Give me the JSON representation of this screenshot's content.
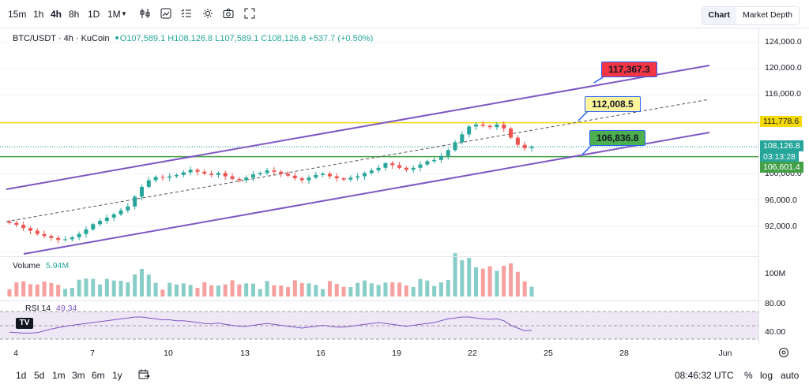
{
  "toolbar": {
    "timeframes": [
      "15m",
      "1h",
      "4h",
      "8h",
      "1D",
      "1M"
    ],
    "tabs": [
      "Chart",
      "Market Depth"
    ]
  },
  "legend": {
    "symbol": "BTC/USDT · 4h · KuCoin",
    "open": "O107,589.1",
    "high": "H108,126.8",
    "low": "L107,589.1",
    "close": "C108,126.8",
    "change": "+537.7 (+0.50%)"
  },
  "volume": {
    "label": "Volume",
    "value": "5.94M",
    "axis_label": "100M"
  },
  "rsi": {
    "label": "RSI 14",
    "value": "49.34",
    "levels": [
      "80.00",
      "40.00"
    ]
  },
  "price_axis": [
    "124,000.0",
    "120,000.0",
    "116,000.0",
    "111,778.6",
    "100,000.0",
    "96,000.0",
    "92,000.0"
  ],
  "price_tags": {
    "h_line": "111,778.6",
    "last": "108,126.8",
    "countdown": "03:13:28",
    "green_line": "106,601.4"
  },
  "callouts": {
    "upper": "117,367.3",
    "mid": "112,008.5",
    "lower": "106,836.8"
  },
  "x_axis": [
    "4",
    "7",
    "10",
    "13",
    "16",
    "19",
    "22",
    "25",
    "28",
    "Jun"
  ],
  "bottom": {
    "ranges": [
      "1d",
      "5d",
      "1m",
      "3m",
      "6m",
      "1y"
    ],
    "time": "08:46:32 UTC",
    "percent": "%",
    "log": "log",
    "auto": "auto"
  },
  "colors": {
    "up": "#26a69a",
    "down": "#ef5350",
    "channel": "#7e57c2",
    "hline": "#f5d90a",
    "gline": "#43a047"
  },
  "chart_data": {
    "type": "candlestick",
    "x_range": [
      "May 4",
      "Jun"
    ],
    "ylim": [
      92000,
      124000
    ],
    "last_price": 108126.8,
    "horizontal_levels": [
      111778.6,
      106601.4
    ],
    "channel_markers": [
      117367.3,
      112008.5,
      106836.8
    ],
    "closes": [
      96500,
      96200,
      95700,
      95300,
      94800,
      94500,
      94200,
      93900,
      94000,
      94300,
      94800,
      95500,
      96300,
      96800,
      97300,
      97800,
      98400,
      99000,
      100500,
      102000,
      103000,
      103500,
      103400,
      103600,
      103800,
      104200,
      104600,
      104300,
      104000,
      103800,
      104100,
      103600,
      103200,
      103000,
      103400,
      103900,
      104100,
      104500,
      104300,
      104000,
      103700,
      103300,
      103000,
      103400,
      103800,
      104000,
      103600,
      103300,
      103100,
      103400,
      103600,
      104100,
      104500,
      104900,
      105600,
      105300,
      104900,
      104600,
      104900,
      105400,
      105900,
      106100,
      106700,
      107600,
      108800,
      110000,
      111200,
      111500,
      111300,
      111100,
      111500,
      110900,
      109500,
      108400,
      107900,
      108100
    ]
  }
}
